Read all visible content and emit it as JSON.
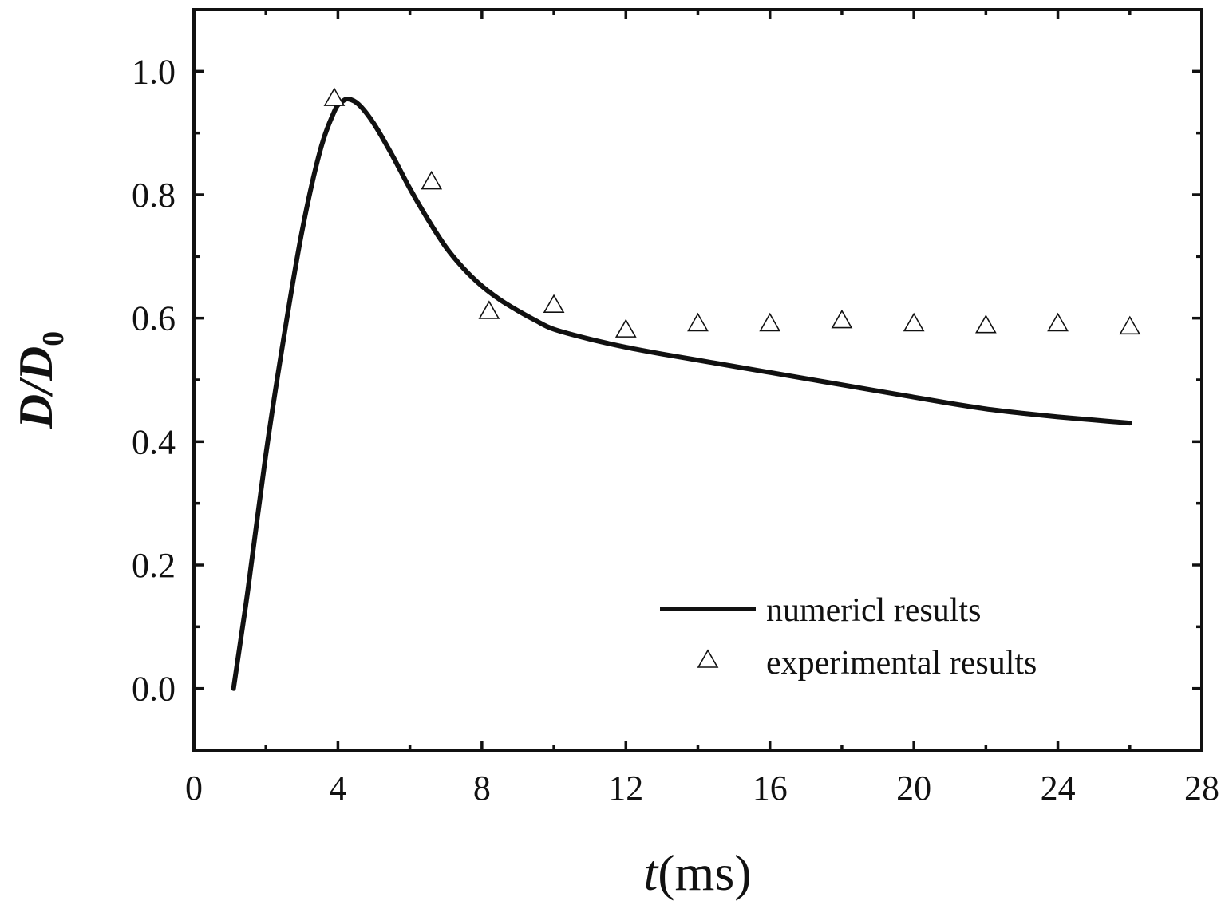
{
  "chart_data": {
    "type": "line",
    "title": "",
    "xlabel": {
      "symbol": "t",
      "unit": "(ms)"
    },
    "ylabel": {
      "symbol": "D/D",
      "subscript": "0"
    },
    "xlim": [
      0,
      28
    ],
    "ylim": [
      -0.1,
      1.1
    ],
    "x_ticks": [
      0,
      4,
      8,
      12,
      16,
      20,
      24,
      28
    ],
    "x_tick_labels": [
      "0",
      "4",
      "8",
      "12",
      "16",
      "20",
      "24",
      "28"
    ],
    "x_minor_step": 2,
    "y_ticks": [
      0.0,
      0.2,
      0.4,
      0.6,
      0.8,
      1.0
    ],
    "y_tick_labels": [
      "0.0",
      "0.2",
      "0.4",
      "0.6",
      "0.8",
      "1.0"
    ],
    "y_minor_step": 0.1,
    "grid": false,
    "legend_position": "bottom-right",
    "series": [
      {
        "name": "numericl results",
        "style": "line",
        "color": "#111111",
        "x": [
          1.1,
          1.5,
          2.0,
          2.5,
          3.0,
          3.5,
          3.9,
          4.1,
          4.3,
          4.6,
          5.0,
          5.5,
          6.0,
          6.5,
          7.0,
          7.5,
          8.0,
          8.5,
          9.0,
          9.5,
          10.0,
          11.0,
          12.0,
          13.0,
          14.0,
          15.0,
          16.0,
          17.0,
          18.0,
          19.0,
          20.0,
          21.0,
          22.0,
          23.0,
          24.0,
          25.0,
          26.0
        ],
        "y": [
          0.0,
          0.16,
          0.38,
          0.57,
          0.74,
          0.87,
          0.935,
          0.95,
          0.955,
          0.945,
          0.915,
          0.865,
          0.81,
          0.76,
          0.715,
          0.68,
          0.652,
          0.63,
          0.612,
          0.596,
          0.582,
          0.566,
          0.553,
          0.542,
          0.532,
          0.522,
          0.512,
          0.502,
          0.492,
          0.482,
          0.472,
          0.462,
          0.453,
          0.446,
          0.44,
          0.435,
          0.43
        ]
      },
      {
        "name": "experimental results",
        "style": "marker",
        "marker": "triangle-open",
        "color": "#111111",
        "x": [
          3.9,
          6.6,
          8.2,
          10.0,
          12.0,
          14.0,
          16.0,
          18.0,
          20.0,
          22.0,
          24.0,
          26.0
        ],
        "y": [
          0.955,
          0.82,
          0.61,
          0.62,
          0.58,
          0.59,
          0.59,
          0.595,
          0.59,
          0.587,
          0.59,
          0.585
        ]
      }
    ]
  }
}
